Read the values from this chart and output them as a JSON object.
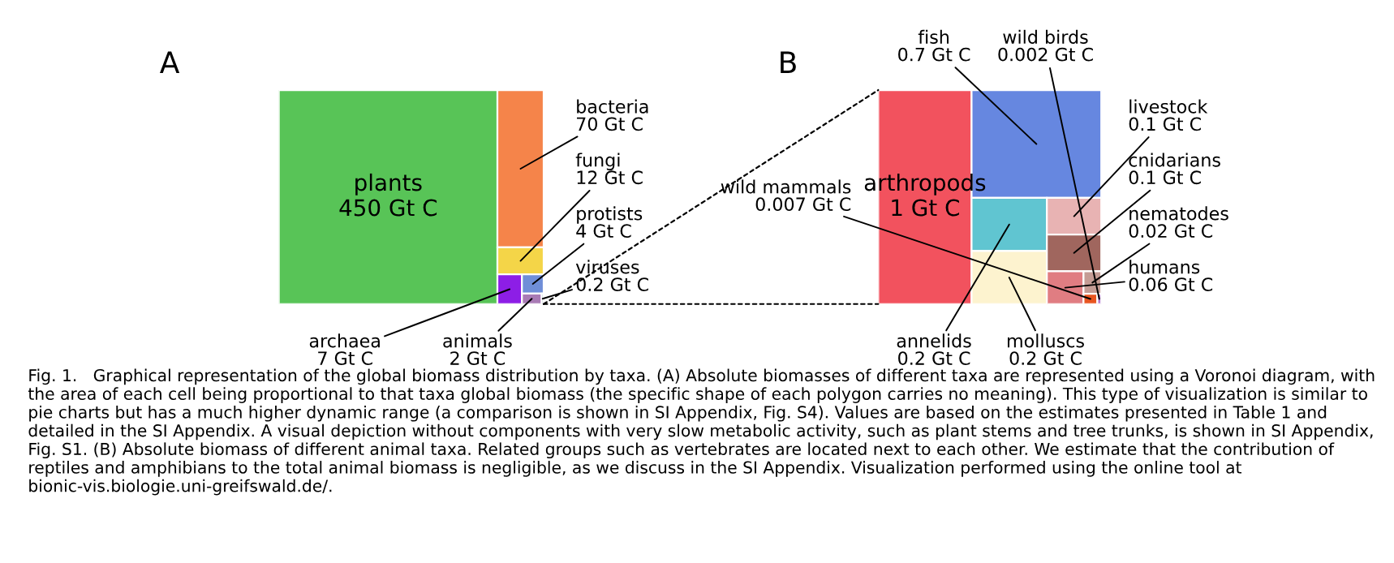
{
  "chart_data": [
    {
      "type": "other",
      "title": "A",
      "categories": [
        "plants",
        "bacteria",
        "fungi",
        "archaea",
        "protists",
        "animals",
        "viruses"
      ],
      "values": [
        450,
        70,
        12,
        7,
        4,
        2,
        0.2
      ],
      "value_labels": [
        "450 Gt C",
        "70 Gt C",
        "12 Gt C",
        "7 Gt C",
        "4 Gt C",
        "2 Gt C",
        "0.2 Gt C"
      ],
      "colors": [
        "#58c457",
        "#f5844a",
        "#f4d548",
        "#8d1ee6",
        "#6f8ed8",
        "#a97bb5",
        "#7a8fa8"
      ],
      "annotations": [
        "Fig. 1.   Graphical representation of the global biomass distribution by taxa. (A) Absolute biomasses of different taxa are represented using a Voronoi diagram, with the area of each cell being proportional to that taxa global biomass (the specific shape of each polygon carries no meaning). This type of visualization is similar to pie charts but has a much higher dynamic range (a comparison is shown in SI Appendix, Fig. S4). Values are based on the estimates presented in Table 1 and detailed in the SI Appendix. A visual depiction without components with very slow metabolic activity, such as plant stems and tree trunks, is shown in SI Appendix, Fig. S1. (B) Absolute biomass of different animal taxa. Related groups such as vertebrates are located next to each other. We estimate that the contribution of reptiles and amphibians to the total animal biomass is negligible, as we discuss in the SI Appendix. Visualization performed using the online tool at bionic-vis.biologie.uni-greifswald.de/."
      ]
    },
    {
      "type": "other",
      "title": "B",
      "categories": [
        "arthropods",
        "fish",
        "annelids",
        "molluscs",
        "livestock",
        "cnidarians",
        "humans",
        "nematodes",
        "wild mammals",
        "wild birds"
      ],
      "values": [
        1,
        0.7,
        0.2,
        0.2,
        0.1,
        0.1,
        0.06,
        0.02,
        0.007,
        0.002
      ],
      "value_labels": [
        "1 Gt C",
        "0.7 Gt C",
        "0.2 Gt C",
        "0.2 Gt C",
        "0.1 Gt C",
        "0.1 Gt C",
        "0.06 Gt C",
        "0.02 Gt C",
        "0.007 Gt C",
        "0.002 Gt C"
      ],
      "colors": [
        "#f2525e",
        "#6687e0",
        "#60c5d1",
        "#fdf3cf",
        "#e8b3b3",
        "#a0665e",
        "#e07d82",
        "#c49c95",
        "#e85520",
        "#b37ad0"
      ]
    }
  ]
}
